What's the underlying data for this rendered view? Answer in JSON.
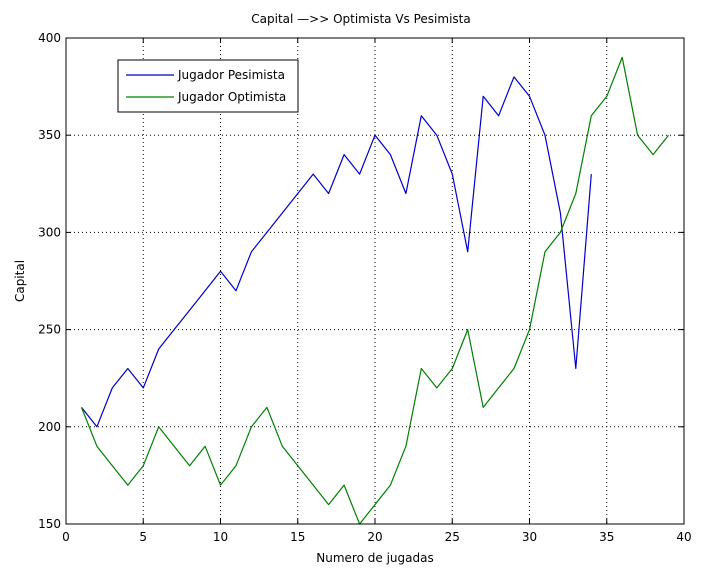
{
  "chart_data": {
    "type": "line",
    "title": "Capital —>> Optimista Vs Pesimista",
    "xlabel": "Numero de jugadas",
    "ylabel": "Capital",
    "xlim": [
      0,
      40
    ],
    "ylim": [
      150,
      400
    ],
    "xticks": [
      0,
      5,
      10,
      15,
      20,
      25,
      30,
      35,
      40
    ],
    "yticks": [
      150,
      200,
      250,
      300,
      350,
      400
    ],
    "grid": true,
    "legend": "top-left",
    "series": [
      {
        "name": "Jugador Pesimista",
        "color": "#0000cc",
        "x": [
          1,
          2,
          3,
          4,
          5,
          6,
          7,
          8,
          9,
          10,
          11,
          12,
          13,
          14,
          15,
          16,
          17,
          18,
          19,
          20,
          21,
          22,
          23,
          24,
          25,
          26,
          27,
          28,
          29,
          30,
          31,
          32,
          33,
          34
        ],
        "values": [
          210,
          200,
          220,
          230,
          220,
          240,
          250,
          260,
          270,
          280,
          270,
          290,
          300,
          310,
          320,
          330,
          320,
          340,
          330,
          350,
          340,
          320,
          360,
          350,
          330,
          290,
          370,
          360,
          380,
          370,
          350,
          310,
          230,
          330
        ]
      },
      {
        "name": "Jugador Optimista",
        "color": "#008000",
        "x": [
          1,
          2,
          3,
          4,
          5,
          6,
          7,
          8,
          9,
          10,
          11,
          12,
          13,
          14,
          15,
          16,
          17,
          18,
          19,
          20,
          21,
          22,
          23,
          24,
          25,
          26,
          27,
          28,
          29,
          30,
          31,
          32,
          33,
          34,
          35,
          36,
          37,
          38,
          39
        ],
        "values": [
          210,
          190,
          180,
          170,
          180,
          200,
          190,
          180,
          190,
          170,
          180,
          200,
          210,
          190,
          180,
          170,
          160,
          170,
          150,
          160,
          170,
          190,
          230,
          220,
          230,
          250,
          210,
          220,
          230,
          250,
          290,
          300,
          320,
          360,
          370,
          390,
          350,
          340,
          350
        ]
      }
    ]
  }
}
